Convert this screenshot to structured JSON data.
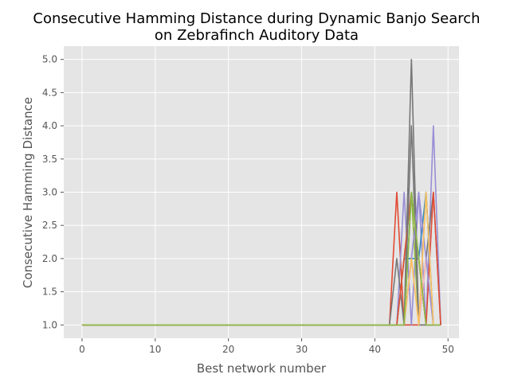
{
  "chart_data": {
    "type": "line",
    "title": [
      "Consecutive Hamming Distance during Dynamic Banjo Search",
      "on Zebrafinch Auditory Data"
    ],
    "xlabel": "Best network number",
    "ylabel": "Consecutive Hamming Distance",
    "xlim": [
      -2.5,
      51.5
    ],
    "ylim": [
      0.8,
      5.2
    ],
    "xticks": [
      0,
      10,
      20,
      30,
      40,
      50
    ],
    "xtick_labels": [
      "0",
      "10",
      "20",
      "30",
      "40",
      "50"
    ],
    "yticks": [
      1.0,
      1.5,
      2.0,
      2.5,
      3.0,
      3.5,
      4.0,
      4.5,
      5.0
    ],
    "ytick_labels": [
      "1.0",
      "1.5",
      "2.0",
      "2.5",
      "3.0",
      "3.5",
      "4.0",
      "4.5",
      "5.0"
    ],
    "grid": true,
    "legend": false,
    "colors": {
      "plot_background": "#e5e5e5",
      "grid": "#ffffff"
    },
    "series": [
      {
        "color": "#e24a33",
        "x": [
          0,
          42,
          43,
          44,
          45,
          46,
          47,
          48,
          49
        ],
        "y": [
          1,
          1,
          3,
          1,
          1,
          1,
          1,
          1,
          1
        ]
      },
      {
        "color": "#348abd",
        "x": [
          0,
          43,
          44,
          45,
          46,
          47,
          48,
          49
        ],
        "y": [
          1,
          1,
          2,
          2,
          2,
          1,
          1,
          1
        ]
      },
      {
        "color": "#988ed5",
        "x": [
          0,
          43,
          44,
          45,
          46,
          47,
          48,
          49
        ],
        "y": [
          1,
          1,
          3,
          1,
          3,
          1,
          4,
          1
        ]
      },
      {
        "color": "#777777",
        "x": [
          0,
          42,
          43,
          44,
          45,
          46,
          47,
          48,
          49
        ],
        "y": [
          1,
          1,
          2,
          1,
          5,
          1,
          2,
          3,
          1
        ]
      },
      {
        "color": "#fbc15e",
        "x": [
          0,
          44,
          45,
          46,
          47,
          48
        ],
        "y": [
          1,
          1,
          3,
          1,
          3,
          1
        ]
      },
      {
        "color": "#8eba42",
        "x": [
          0,
          43,
          44,
          45,
          46,
          47,
          48,
          49
        ],
        "y": [
          1,
          1,
          2,
          3,
          1,
          2,
          1,
          1
        ]
      },
      {
        "color": "#ffb5b8",
        "x": [
          0,
          44,
          45,
          46,
          47,
          48
        ],
        "y": [
          1,
          1,
          2,
          1,
          2,
          1
        ]
      },
      {
        "color": "#e24a33",
        "x": [
          0,
          43,
          44,
          45,
          46,
          47,
          48,
          49
        ],
        "y": [
          1,
          1,
          2,
          3,
          2,
          1,
          3,
          1
        ]
      },
      {
        "color": "#348abd",
        "x": [
          0,
          44,
          45,
          46,
          47,
          48
        ],
        "y": [
          1,
          1,
          3,
          2,
          3,
          1
        ]
      },
      {
        "color": "#988ed5",
        "x": [
          0,
          44,
          45,
          46,
          47,
          48
        ],
        "y": [
          1,
          1,
          2,
          3,
          2,
          1
        ]
      },
      {
        "color": "#777777",
        "x": [
          0,
          44,
          45,
          46,
          47,
          48
        ],
        "y": [
          1,
          1,
          4,
          1,
          1,
          1
        ]
      },
      {
        "color": "#fbc15e",
        "x": [
          0,
          44,
          45,
          46,
          47,
          48
        ],
        "y": [
          1,
          1,
          2,
          1,
          3,
          1
        ]
      },
      {
        "color": "#8eba42",
        "x": [
          0,
          44,
          45,
          46,
          47,
          48
        ],
        "y": [
          1,
          1,
          3,
          2,
          1,
          1
        ]
      }
    ]
  }
}
